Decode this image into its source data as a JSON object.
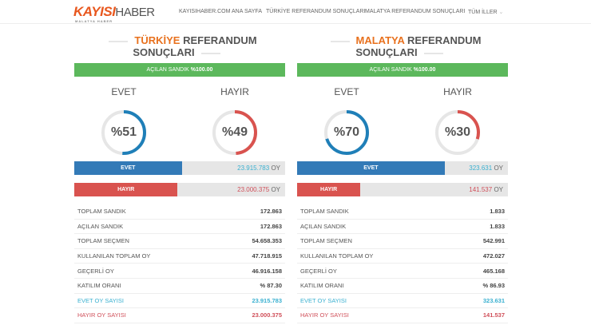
{
  "header": {
    "logo_main": "KAYISI",
    "logo_second": "HABER",
    "logo_sub": "MALATYA HABER",
    "nav": [
      "KAYISIHABER.COM ANA SAYFA",
      "TÜRKİYE REFERANDUM SONUÇLARI",
      "MALATYA REFERANDUM SONUÇLARI",
      "TÜM İLLER"
    ],
    "dropdown_icon": "chevron-down-icon"
  },
  "colors": {
    "evet": "#337ab7",
    "hayir": "#d9534f",
    "green": "#5cb85c",
    "accent": "#e8711e"
  },
  "panels": [
    {
      "title_accent": "TÜRKİYE",
      "title_rest": "REFERANDUM SONUÇLARI",
      "opened_label": "AÇILAN SANDIK",
      "opened_value": "%100.00",
      "evet_label": "EVET",
      "hayir_label": "HAYIR",
      "evet_pct_text": "%51",
      "hayir_pct_text": "%49",
      "evet_pct": 51,
      "hayir_pct": 49,
      "evet_votes": "23.915.783",
      "hayir_votes": "23.000.375",
      "oy": "OY",
      "rows": [
        {
          "k": "TOPLAM SANDIK",
          "v": "172.863"
        },
        {
          "k": "AÇILAN SANDIK",
          "v": "172.863"
        },
        {
          "k": "TOPLAM SEÇMEN",
          "v": "54.658.353"
        },
        {
          "k": "KULLANILAN TOPLAM OY",
          "v": "47.718.915"
        },
        {
          "k": "GEÇERLİ OY",
          "v": "46.916.158"
        },
        {
          "k": "KATILIM ORANI",
          "v": "% 87.30"
        },
        {
          "k": "EVET OY SAYISI",
          "v": "23.915.783"
        },
        {
          "k": "HAYIR OY SAYISI",
          "v": "23.000.375"
        }
      ]
    },
    {
      "title_accent": "MALATYA",
      "title_rest": "REFERANDUM SONUÇLARI",
      "opened_label": "AÇILAN SANDIK",
      "opened_value": "%100.00",
      "evet_label": "EVET",
      "hayir_label": "HAYIR",
      "evet_pct_text": "%70",
      "hayir_pct_text": "%30",
      "evet_pct": 70,
      "hayir_pct": 30,
      "evet_votes": "323.631",
      "hayir_votes": "141.537",
      "oy": "OY",
      "rows": [
        {
          "k": "TOPLAM SANDIK",
          "v": "1.833"
        },
        {
          "k": "AÇILAN SANDIK",
          "v": "1.833"
        },
        {
          "k": "TOPLAM SEÇMEN",
          "v": "542.991"
        },
        {
          "k": "KULLANILAN TOPLAM OY",
          "v": "472.027"
        },
        {
          "k": "GEÇERLİ OY",
          "v": "465.168"
        },
        {
          "k": "KATILIM ORANI",
          "v": "% 86.93"
        },
        {
          "k": "EVET OY SAYISI",
          "v": "323.631"
        },
        {
          "k": "HAYIR OY SAYISI",
          "v": "141.537"
        }
      ]
    }
  ]
}
